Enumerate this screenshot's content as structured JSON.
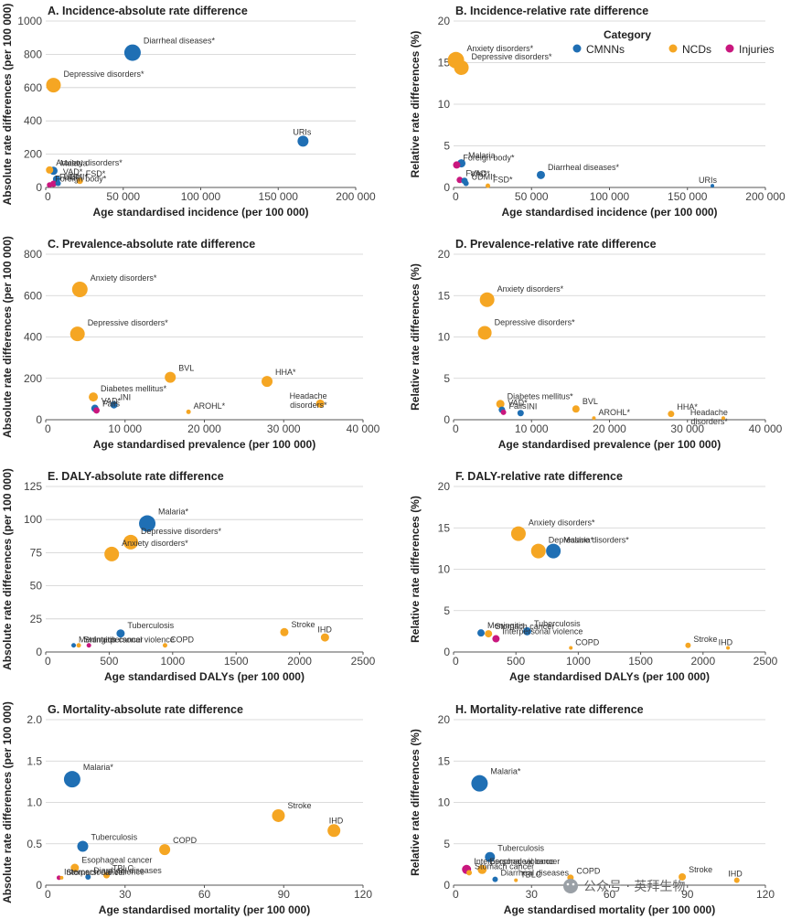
{
  "legend": {
    "title": "Category",
    "items": [
      {
        "name": "CMNNs",
        "color": "#1f6fb4"
      },
      {
        "name": "NCDs",
        "color": "#f5a623"
      },
      {
        "name": "Injuries",
        "color": "#c9177e"
      }
    ]
  },
  "watermark": "公众号 · 英拜生物",
  "chart_data": [
    {
      "type": "scatter",
      "title": "A. Incidence-absolute rate difference",
      "xlabel": "Age standardised incidence (per 100 000)",
      "ylabel": "Absolute rate differences (per 100 000)",
      "xlim": [
        0,
        200000
      ],
      "xticks": [
        0,
        50000,
        100000,
        150000,
        200000
      ],
      "xtick_labels": [
        "0",
        "50 000",
        "100 000",
        "150 000",
        "200 000"
      ],
      "ylim": [
        0,
        1000
      ],
      "yticks": [
        0,
        200,
        400,
        600,
        800,
        1000
      ],
      "ytick_labels": [
        "0",
        "200",
        "400",
        "600",
        "800",
        "1000"
      ],
      "points": [
        {
          "label": "Diarrheal diseases*",
          "x": 56000,
          "y": 810,
          "size": 9,
          "cat": "CMNNs"
        },
        {
          "label": "Depressive disorders*",
          "x": 5000,
          "y": 615,
          "size": 8,
          "cat": "NCDs"
        },
        {
          "label": "URIs",
          "x": 166000,
          "y": 278,
          "size": 6,
          "cat": "CMNNs"
        },
        {
          "label": "Anxiety disorders*",
          "x": 2500,
          "y": 105,
          "size": 4,
          "cat": "NCDs"
        },
        {
          "label": "Malaria",
          "x": 5000,
          "y": 100,
          "size": 4.5,
          "cat": "CMNNs"
        },
        {
          "label": "VAD*",
          "x": 7000,
          "y": 50,
          "size": 4,
          "cat": "CMNNs"
        },
        {
          "label": "Falls*",
          "x": 5000,
          "y": 22,
          "size": 3.5,
          "cat": "Injuries"
        },
        {
          "label": "UDMI*",
          "x": 8000,
          "y": 25,
          "size": 3,
          "cat": "CMNNs"
        },
        {
          "label": "FSD*",
          "x": 22000,
          "y": 40,
          "size": 3.5,
          "cat": "NCDs"
        },
        {
          "label": "Foreign body*",
          "x": 2500,
          "y": 15,
          "size": 3,
          "cat": "Injuries"
        }
      ]
    },
    {
      "type": "scatter",
      "title": "B. Incidence-relative rate difference",
      "xlabel": "Age standardised incidence (per 100 000)",
      "ylabel": "Relative rate differences (%)",
      "xlim": [
        0,
        200000
      ],
      "xticks": [
        0,
        50000,
        100000,
        150000,
        200000
      ],
      "xtick_labels": [
        "0",
        "50 000",
        "100 000",
        "150 000",
        "200 000"
      ],
      "ylim": [
        0,
        20
      ],
      "yticks": [
        0,
        5,
        10,
        15,
        20
      ],
      "ytick_labels": [
        "0",
        "5",
        "10",
        "15",
        "20"
      ],
      "points": [
        {
          "label": "Anxiety disorders*",
          "x": 1500,
          "y": 15.3,
          "size": 9,
          "cat": "NCDs"
        },
        {
          "label": "Depressive disorders*",
          "x": 5000,
          "y": 14.4,
          "size": 8,
          "cat": "NCDs"
        },
        {
          "label": "Foreign body*",
          "x": 2000,
          "y": 2.7,
          "size": 4,
          "cat": "Injuries"
        },
        {
          "label": "Malaria",
          "x": 5000,
          "y": 2.9,
          "size": 4.5,
          "cat": "CMNNs"
        },
        {
          "label": "Falls*",
          "x": 4000,
          "y": 0.9,
          "size": 3.5,
          "cat": "Injuries"
        },
        {
          "label": "VAD*",
          "x": 7000,
          "y": 0.8,
          "size": 3.5,
          "cat": "CMNNs"
        },
        {
          "label": "UDMI*",
          "x": 8000,
          "y": 0.5,
          "size": 3,
          "cat": "CMNNs"
        },
        {
          "label": "FSD*",
          "x": 22000,
          "y": 0.2,
          "size": 2.5,
          "cat": "NCDs"
        },
        {
          "label": "Diarrheal diseases*",
          "x": 56000,
          "y": 1.5,
          "size": 4.5,
          "cat": "CMNNs"
        },
        {
          "label": "URIs",
          "x": 166000,
          "y": 0.2,
          "size": 2,
          "cat": "CMNNs"
        }
      ]
    },
    {
      "type": "scatter",
      "title": "C. Prevalence-absolute rate difference",
      "xlabel": "Age standardised prevalence (per 100 000)",
      "ylabel": "Absolute rate differences (per 100 000)",
      "xlim": [
        0,
        40000
      ],
      "xticks": [
        0,
        10000,
        20000,
        30000,
        40000
      ],
      "xtick_labels": [
        "0",
        "10 000",
        "20 000",
        "30 000",
        "40 000"
      ],
      "ylim": [
        0,
        800
      ],
      "yticks": [
        0,
        200,
        400,
        600,
        800
      ],
      "ytick_labels": [
        "0",
        "200",
        "400",
        "600",
        "800"
      ],
      "points": [
        {
          "label": "Anxiety disorders*",
          "x": 4300,
          "y": 630,
          "size": 8.5,
          "cat": "NCDs"
        },
        {
          "label": "Depressive disorders*",
          "x": 4000,
          "y": 415,
          "size": 8,
          "cat": "NCDs"
        },
        {
          "label": "BVL",
          "x": 15700,
          "y": 205,
          "size": 6,
          "cat": "NCDs"
        },
        {
          "label": "HHA*",
          "x": 27900,
          "y": 185,
          "size": 6,
          "cat": "NCDs"
        },
        {
          "label": "Diabetes mellitus*",
          "x": 6000,
          "y": 110,
          "size": 5,
          "cat": "NCDs"
        },
        {
          "label": "VAD*",
          "x": 6200,
          "y": 55,
          "size": 4,
          "cat": "CMNNs"
        },
        {
          "label": "INI",
          "x": 8600,
          "y": 72,
          "size": 4,
          "cat": "CMNNs"
        },
        {
          "label": "Falls",
          "x": 6400,
          "y": 45,
          "size": 3.5,
          "cat": "Injuries"
        },
        {
          "label": "AROHL*",
          "x": 18000,
          "y": 38,
          "size": 2.5,
          "cat": "NCDs"
        },
        {
          "label": "Headache disorders*",
          "x": 34600,
          "y": 78,
          "size": 4.5,
          "cat": "NCDs"
        }
      ]
    },
    {
      "type": "scatter",
      "title": "D. Prevalence-relative rate difference",
      "xlabel": "Age standardised prevalence (per 100 000)",
      "ylabel": "Relative rate differences (%)",
      "xlim": [
        0,
        40000
      ],
      "xticks": [
        0,
        10000,
        20000,
        30000,
        40000
      ],
      "xtick_labels": [
        "0",
        "10 000",
        "20 000",
        "30 000",
        "40 000"
      ],
      "ylim": [
        0,
        20
      ],
      "yticks": [
        0,
        5,
        10,
        15,
        20
      ],
      "ytick_labels": [
        "0",
        "5",
        "10",
        "15",
        "20"
      ],
      "points": [
        {
          "label": "Anxiety disorders*",
          "x": 4300,
          "y": 14.5,
          "size": 8,
          "cat": "NCDs"
        },
        {
          "label": "Depressive disorders*",
          "x": 4000,
          "y": 10.5,
          "size": 7.5,
          "cat": "NCDs"
        },
        {
          "label": "Diabetes mellitus*",
          "x": 6000,
          "y": 1.9,
          "size": 4.5,
          "cat": "NCDs"
        },
        {
          "label": "VAD*",
          "x": 6200,
          "y": 1.2,
          "size": 3.5,
          "cat": "CMNNs"
        },
        {
          "label": "Falls",
          "x": 6400,
          "y": 0.9,
          "size": 3,
          "cat": "Injuries"
        },
        {
          "label": "INI",
          "x": 8600,
          "y": 0.8,
          "size": 3.5,
          "cat": "CMNNs"
        },
        {
          "label": "BVL",
          "x": 15700,
          "y": 1.3,
          "size": 4,
          "cat": "NCDs"
        },
        {
          "label": "AROHL*",
          "x": 18000,
          "y": 0.2,
          "size": 2,
          "cat": "NCDs"
        },
        {
          "label": "HHA*",
          "x": 27900,
          "y": 0.7,
          "size": 3.5,
          "cat": "NCDs"
        },
        {
          "label": "Headache disorders*",
          "x": 34600,
          "y": 0.2,
          "size": 2,
          "cat": "NCDs"
        }
      ]
    },
    {
      "type": "scatter",
      "title": "E. DALY-absolute rate difference",
      "xlabel": "Age standardised DALYs (per 100 000)",
      "ylabel": "Absolute rate differences (per 100 000)",
      "xlim": [
        0,
        2500
      ],
      "xticks": [
        0,
        500,
        1000,
        1500,
        2000,
        2500
      ],
      "xtick_labels": [
        "0",
        "500",
        "1000",
        "1500",
        "2000",
        "2500"
      ],
      "ylim": [
        0,
        125
      ],
      "yticks": [
        0,
        25,
        50,
        75,
        100,
        125
      ],
      "ytick_labels": [
        "0",
        "25",
        "50",
        "75",
        "100",
        "125"
      ],
      "points": [
        {
          "label": "Malaria*",
          "x": 800,
          "y": 97,
          "size": 9,
          "cat": "CMNNs"
        },
        {
          "label": "Depressive disorders*",
          "x": 670,
          "y": 83,
          "size": 8,
          "cat": "NCDs"
        },
        {
          "label": "Anxiety disorders*",
          "x": 520,
          "y": 74,
          "size": 8,
          "cat": "NCDs"
        },
        {
          "label": "Meningitis",
          "x": 220,
          "y": 5,
          "size": 2.5,
          "cat": "CMNNs"
        },
        {
          "label": "Stomach cancer",
          "x": 260,
          "y": 5,
          "size": 2.5,
          "cat": "NCDs"
        },
        {
          "label": "Interpersonal violence",
          "x": 340,
          "y": 5,
          "size": 2.5,
          "cat": "Injuries"
        },
        {
          "label": "Tuberculosis",
          "x": 590,
          "y": 14,
          "size": 4.5,
          "cat": "CMNNs"
        },
        {
          "label": "COPD",
          "x": 940,
          "y": 5,
          "size": 2.5,
          "cat": "NCDs"
        },
        {
          "label": "Stroke",
          "x": 1880,
          "y": 15,
          "size": 4.5,
          "cat": "NCDs"
        },
        {
          "label": "IHD",
          "x": 2200,
          "y": 11,
          "size": 4.5,
          "cat": "NCDs"
        }
      ]
    },
    {
      "type": "scatter",
      "title": "F. DALY-relative rate difference",
      "xlabel": "Age standardised DALYs (per 100 000)",
      "ylabel": "Relative rate differences (%)",
      "xlim": [
        0,
        2500
      ],
      "xticks": [
        0,
        500,
        1000,
        1500,
        2000,
        2500
      ],
      "xtick_labels": [
        "0",
        "500",
        "1000",
        "1500",
        "2000",
        "2500"
      ],
      "ylim": [
        0,
        20
      ],
      "yticks": [
        0,
        5,
        10,
        15,
        20
      ],
      "ytick_labels": [
        "0",
        "5",
        "10",
        "15",
        "20"
      ],
      "points": [
        {
          "label": "Anxiety disorders*",
          "x": 520,
          "y": 14.3,
          "size": 8,
          "cat": "NCDs"
        },
        {
          "label": "Depressive disorders*",
          "x": 680,
          "y": 12.2,
          "size": 8,
          "cat": "NCDs"
        },
        {
          "label": "Malaria*",
          "x": 800,
          "y": 12.2,
          "size": 8,
          "cat": "CMNNs"
        },
        {
          "label": "Meningitis",
          "x": 220,
          "y": 2.3,
          "size": 4,
          "cat": "CMNNs"
        },
        {
          "label": "Stomach cancer",
          "x": 280,
          "y": 2.2,
          "size": 4,
          "cat": "NCDs"
        },
        {
          "label": "Interpersonal violence",
          "x": 340,
          "y": 1.6,
          "size": 4,
          "cat": "Injuries"
        },
        {
          "label": "Tuberculosis",
          "x": 590,
          "y": 2.5,
          "size": 4.5,
          "cat": "CMNNs"
        },
        {
          "label": "COPD",
          "x": 940,
          "y": 0.5,
          "size": 2,
          "cat": "NCDs"
        },
        {
          "label": "Stroke",
          "x": 1880,
          "y": 0.8,
          "size": 3,
          "cat": "NCDs"
        },
        {
          "label": "IHD",
          "x": 2200,
          "y": 0.5,
          "size": 2,
          "cat": "NCDs"
        }
      ]
    },
    {
      "type": "scatter",
      "title": "G. Mortality-absolute rate difference",
      "xlabel": "Age standardised mortality (per 100 000)",
      "ylabel": "Absolute rate differences (per 100 000)",
      "xlim": [
        0,
        120
      ],
      "xticks": [
        0,
        30,
        60,
        90,
        120
      ],
      "xtick_labels": [
        "0",
        "30",
        "60",
        "90",
        "120"
      ],
      "ylim": [
        0,
        2.0
      ],
      "yticks": [
        0,
        0.5,
        1.0,
        1.5,
        2.0
      ],
      "ytick_labels": [
        "0",
        "0.5",
        "1.0",
        "1.5",
        "2.0"
      ],
      "points": [
        {
          "label": "Malaria*",
          "x": 10,
          "y": 1.28,
          "size": 9,
          "cat": "CMNNs"
        },
        {
          "label": "Interpersonal violence",
          "x": 5,
          "y": 0.09,
          "size": 2.5,
          "cat": "Injuries"
        },
        {
          "label": "Esophageal cancer",
          "x": 11,
          "y": 0.21,
          "size": 4.5,
          "cat": "NCDs"
        },
        {
          "label": "Tuberculosis",
          "x": 14,
          "y": 0.47,
          "size": 6,
          "cat": "CMNNs"
        },
        {
          "label": "Stomach cancer",
          "x": 6,
          "y": 0.09,
          "size": 2,
          "cat": "NCDs"
        },
        {
          "label": "Diarrheal diseases",
          "x": 16,
          "y": 0.1,
          "size": 3,
          "cat": "CMNNs"
        },
        {
          "label": "TBLC",
          "x": 23,
          "y": 0.12,
          "size": 3.5,
          "cat": "NCDs"
        },
        {
          "label": "COPD",
          "x": 45,
          "y": 0.43,
          "size": 6,
          "cat": "NCDs"
        },
        {
          "label": "Stroke",
          "x": 88,
          "y": 0.84,
          "size": 7,
          "cat": "NCDs"
        },
        {
          "label": "IHD",
          "x": 109,
          "y": 0.66,
          "size": 7,
          "cat": "NCDs"
        }
      ]
    },
    {
      "type": "scatter",
      "title": "H. Mortality-relative rate difference",
      "xlabel": "Age standardised mortality (per 100 000)",
      "ylabel": "Relative rate differences (%)",
      "xlim": [
        0,
        120
      ],
      "xticks": [
        0,
        30,
        60,
        90,
        120
      ],
      "xtick_labels": [
        "0",
        "30",
        "60",
        "90",
        "120"
      ],
      "ylim": [
        0,
        20
      ],
      "yticks": [
        0,
        5,
        10,
        15,
        20
      ],
      "ytick_labels": [
        "0",
        "5",
        "10",
        "15",
        "20"
      ],
      "points": [
        {
          "label": "Malaria*",
          "x": 10,
          "y": 12.3,
          "size": 9,
          "cat": "CMNNs"
        },
        {
          "label": "Interpersonal violence",
          "x": 5,
          "y": 1.9,
          "size": 5,
          "cat": "Injuries"
        },
        {
          "label": "Esophageal cancer",
          "x": 11,
          "y": 1.9,
          "size": 5,
          "cat": "NCDs"
        },
        {
          "label": "Tuberculosis",
          "x": 14,
          "y": 3.4,
          "size": 5.5,
          "cat": "CMNNs"
        },
        {
          "label": "Stomach cancer",
          "x": 6,
          "y": 1.5,
          "size": 3,
          "cat": "NCDs"
        },
        {
          "label": "Diarrheal diseases",
          "x": 16,
          "y": 0.7,
          "size": 3,
          "cat": "CMNNs"
        },
        {
          "label": "TBLC",
          "x": 24,
          "y": 0.6,
          "size": 2,
          "cat": "NCDs"
        },
        {
          "label": "COPD",
          "x": 45,
          "y": 0.9,
          "size": 3.5,
          "cat": "NCDs"
        },
        {
          "label": "Stroke",
          "x": 88,
          "y": 1.0,
          "size": 4,
          "cat": "NCDs"
        },
        {
          "label": "IHD",
          "x": 109,
          "y": 0.6,
          "size": 3,
          "cat": "NCDs"
        }
      ]
    }
  ]
}
